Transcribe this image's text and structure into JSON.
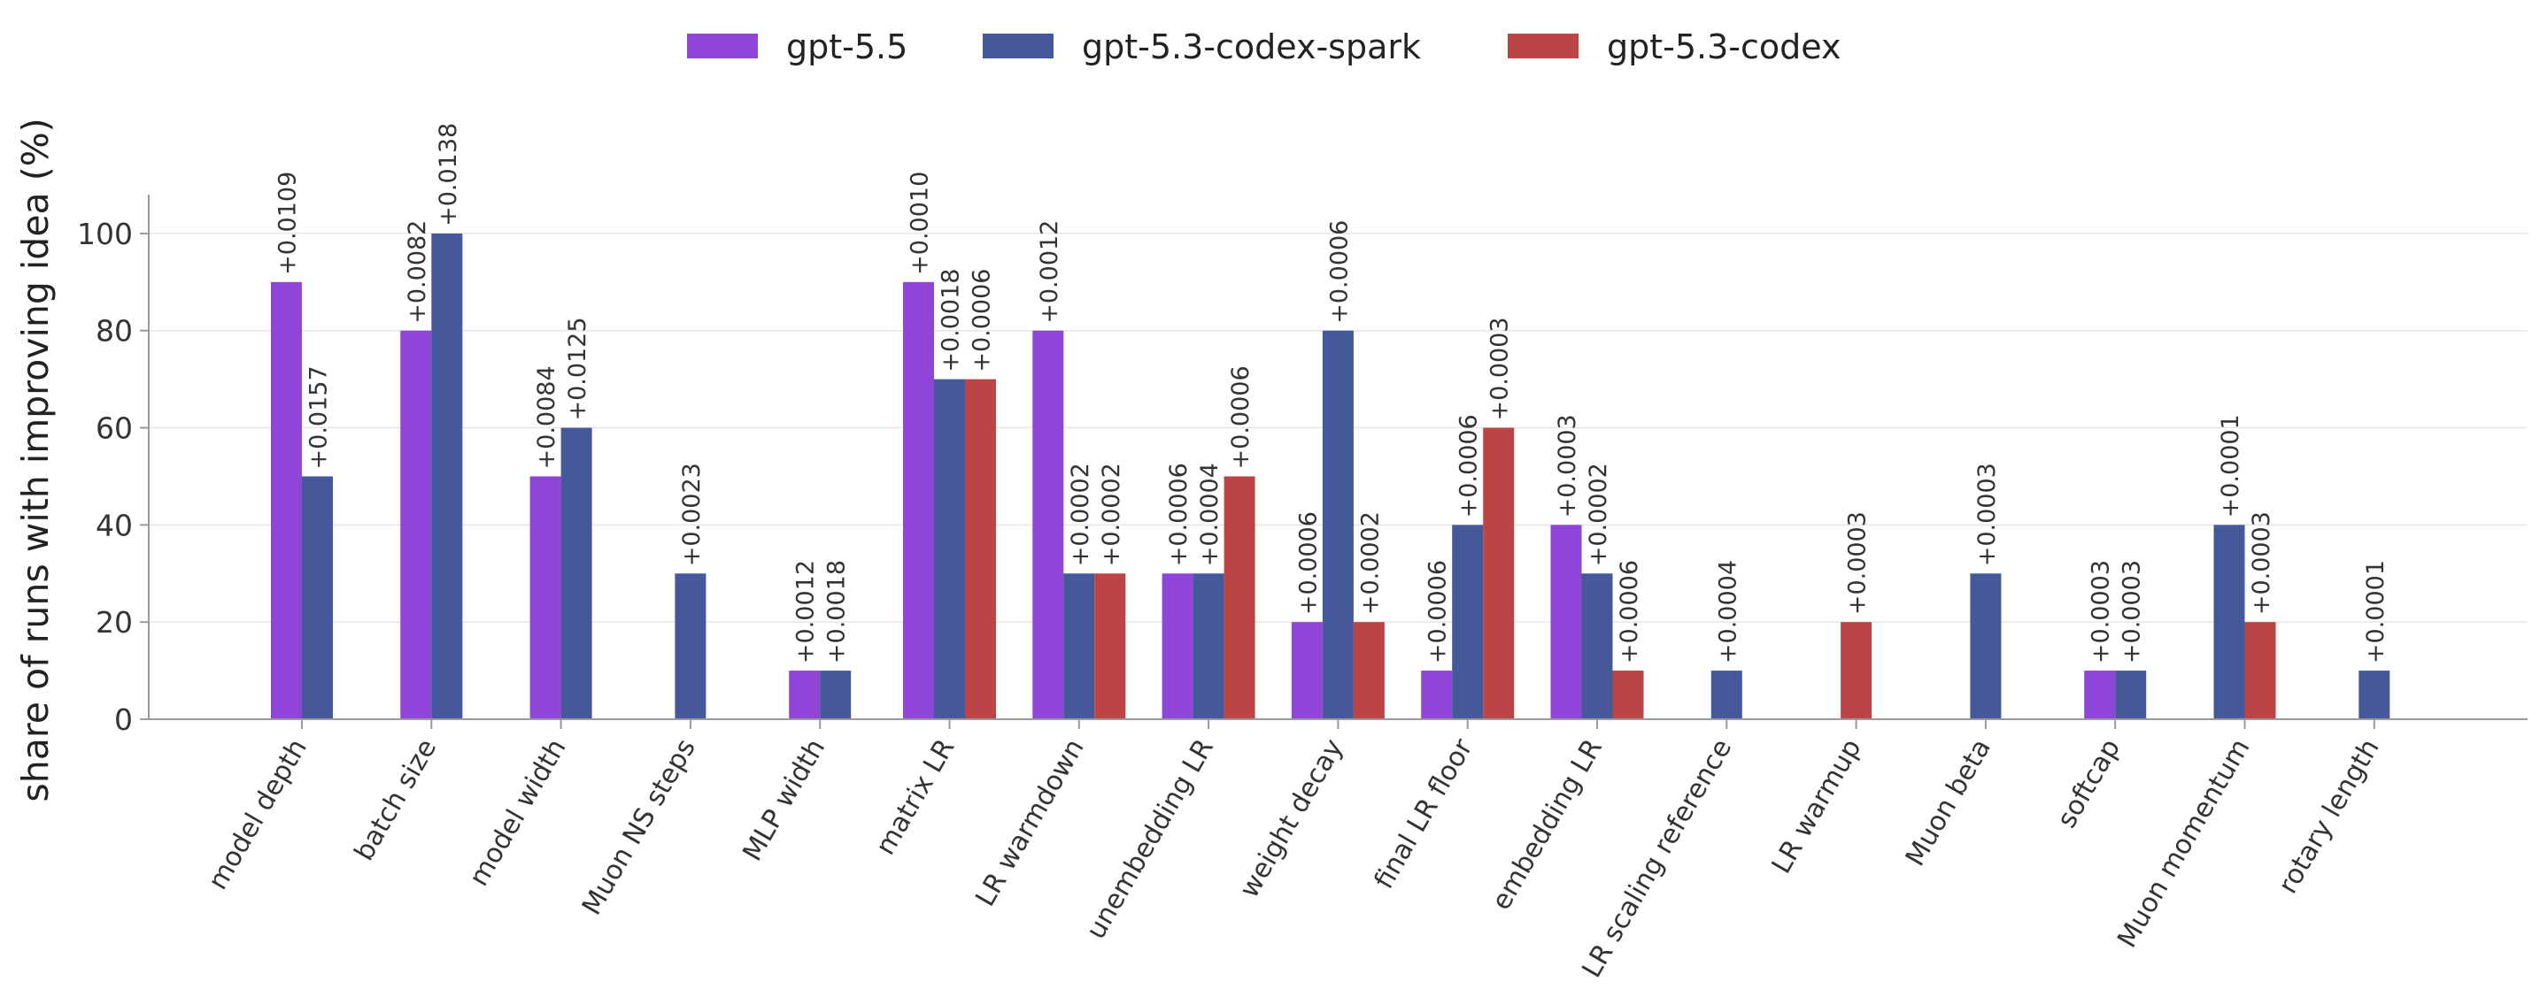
{
  "chart_data": {
    "type": "bar",
    "title": "",
    "xlabel": "",
    "ylabel": "share of runs with improving idea (%)",
    "ylim": [
      0,
      108
    ],
    "yticks": [
      0,
      20,
      40,
      60,
      80,
      100
    ],
    "grid": "horizontal",
    "legend_position": "top-center",
    "categories": [
      "model depth",
      "batch size",
      "model width",
      "Muon NS steps",
      "MLP width",
      "matrix LR",
      "LR warmdown",
      "unembedding LR",
      "weight decay",
      "final LR floor",
      "embedding LR",
      "LR scaling reference",
      "LR warmup",
      "Muon beta",
      "softcap",
      "Muon momentum",
      "rotary length"
    ],
    "series": [
      {
        "name": "gpt-5.5",
        "color": "#8f45d8",
        "values": [
          90,
          80,
          50,
          null,
          10,
          90,
          80,
          30,
          20,
          10,
          40,
          null,
          null,
          null,
          10,
          null,
          null
        ],
        "labels": [
          "+0.0109",
          "+0.0082",
          "+0.0084",
          null,
          "+0.0012",
          "+0.0010",
          "+0.0012",
          "+0.0006",
          "+0.0006",
          "+0.0006",
          "+0.0003",
          null,
          null,
          null,
          "+0.0003",
          null,
          null
        ]
      },
      {
        "name": "gpt-5.3-codex-spark",
        "color": "#45589a",
        "values": [
          50,
          100,
          60,
          30,
          10,
          70,
          30,
          30,
          80,
          40,
          30,
          10,
          null,
          30,
          10,
          40,
          10
        ],
        "labels": [
          "+0.0157",
          "+0.0138",
          "+0.0125",
          "+0.0023",
          "+0.0018",
          "+0.0018",
          "+0.0002",
          "+0.0004",
          "+0.0006",
          "+0.0006",
          "+0.0002",
          "+0.0004",
          null,
          "+0.0003",
          "+0.0003",
          "+0.0001",
          "+0.0001"
        ]
      },
      {
        "name": "gpt-5.3-codex",
        "color": "#bd4444",
        "values": [
          null,
          null,
          null,
          null,
          null,
          70,
          30,
          50,
          20,
          60,
          10,
          null,
          20,
          null,
          null,
          20,
          null
        ],
        "labels": [
          null,
          null,
          null,
          null,
          null,
          "+0.0006",
          "+0.0002",
          "+0.0006",
          "+0.0002",
          "+0.0003",
          "+0.0006",
          null,
          "+0.0003",
          null,
          null,
          "+0.0003",
          null
        ]
      }
    ]
  }
}
